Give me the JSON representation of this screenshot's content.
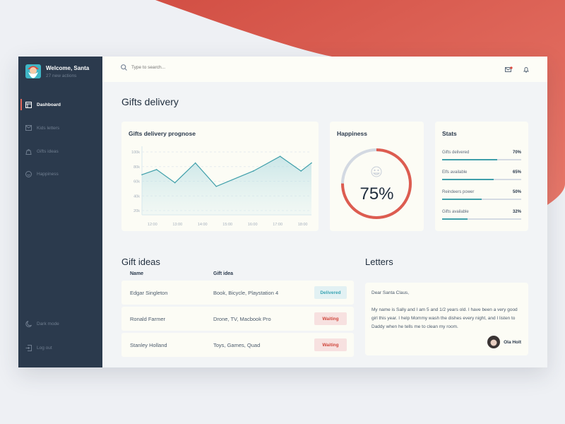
{
  "sidebar": {
    "welcome": "Welcome, Santa",
    "actions": "27 new actions",
    "items": [
      {
        "label": "Dashboard",
        "icon": "dashboard-icon",
        "active": true
      },
      {
        "label": "Kids letters",
        "icon": "mail-icon"
      },
      {
        "label": "Gifts ideas",
        "icon": "bag-icon"
      },
      {
        "label": "Happiness",
        "icon": "smile-icon"
      }
    ],
    "dark_mode": "Dark mode",
    "logout": "Log out"
  },
  "header": {
    "search_placeholder": "Type to search..."
  },
  "main": {
    "title": "Gifts delivery"
  },
  "chart_data": {
    "type": "area",
    "title": "Gifts delivery prognose",
    "x": [
      "11:35",
      "12:10",
      "12:54",
      "13:43",
      "14:33",
      "16:02",
      "17:06",
      "17:56",
      "18:21"
    ],
    "values": [
      69,
      76,
      58,
      85,
      53,
      74,
      94,
      74,
      85
    ],
    "y_ticks": [
      "100k",
      "80k",
      "60k",
      "40k",
      "20k"
    ],
    "x_ticks": [
      "12:00",
      "13:00",
      "14:00",
      "15:00",
      "16:00",
      "17:00",
      "18:00"
    ],
    "ylim": [
      0,
      100
    ],
    "xlim": [
      "11:35",
      "18:21"
    ],
    "grid": true,
    "color": "#3f9faa"
  },
  "happiness": {
    "title": "Happiness",
    "value": "75%",
    "fraction": 0.75,
    "color": "#dd5c50"
  },
  "stats": {
    "title": "Stats",
    "items": [
      {
        "label": "Gifts delivered",
        "value": "70%",
        "pct": 70
      },
      {
        "label": "Elfs available",
        "value": "65%",
        "pct": 65
      },
      {
        "label": "Reindeers power",
        "value": "50%",
        "pct": 50
      },
      {
        "label": "Gifts available",
        "value": "32%",
        "pct": 32
      }
    ]
  },
  "gift_ideas": {
    "title": "Gift ideas",
    "columns": [
      "Name",
      "Gift idea"
    ],
    "rows": [
      {
        "name": "Edgar Singleton",
        "idea": "Book, Bicycle, Playstation 4",
        "status": "Delivered"
      },
      {
        "name": "Ronald Farmer",
        "idea": "Drone, TV, Macbook Pro",
        "status": "Waiting"
      },
      {
        "name": "Stanley Holland",
        "idea": "Toys, Games, Quad",
        "status": "Waiting"
      }
    ]
  },
  "letters": {
    "title": "Letters",
    "greeting": "Dear Santa Claus,",
    "body": "My name is Sally and I am 5 and 1/2 years old. I have been a very good girl this year. I help Mommy wash the dishes every night, and I listen to Daddy when he tells me to clean my room.",
    "author": "Ola Holt"
  }
}
